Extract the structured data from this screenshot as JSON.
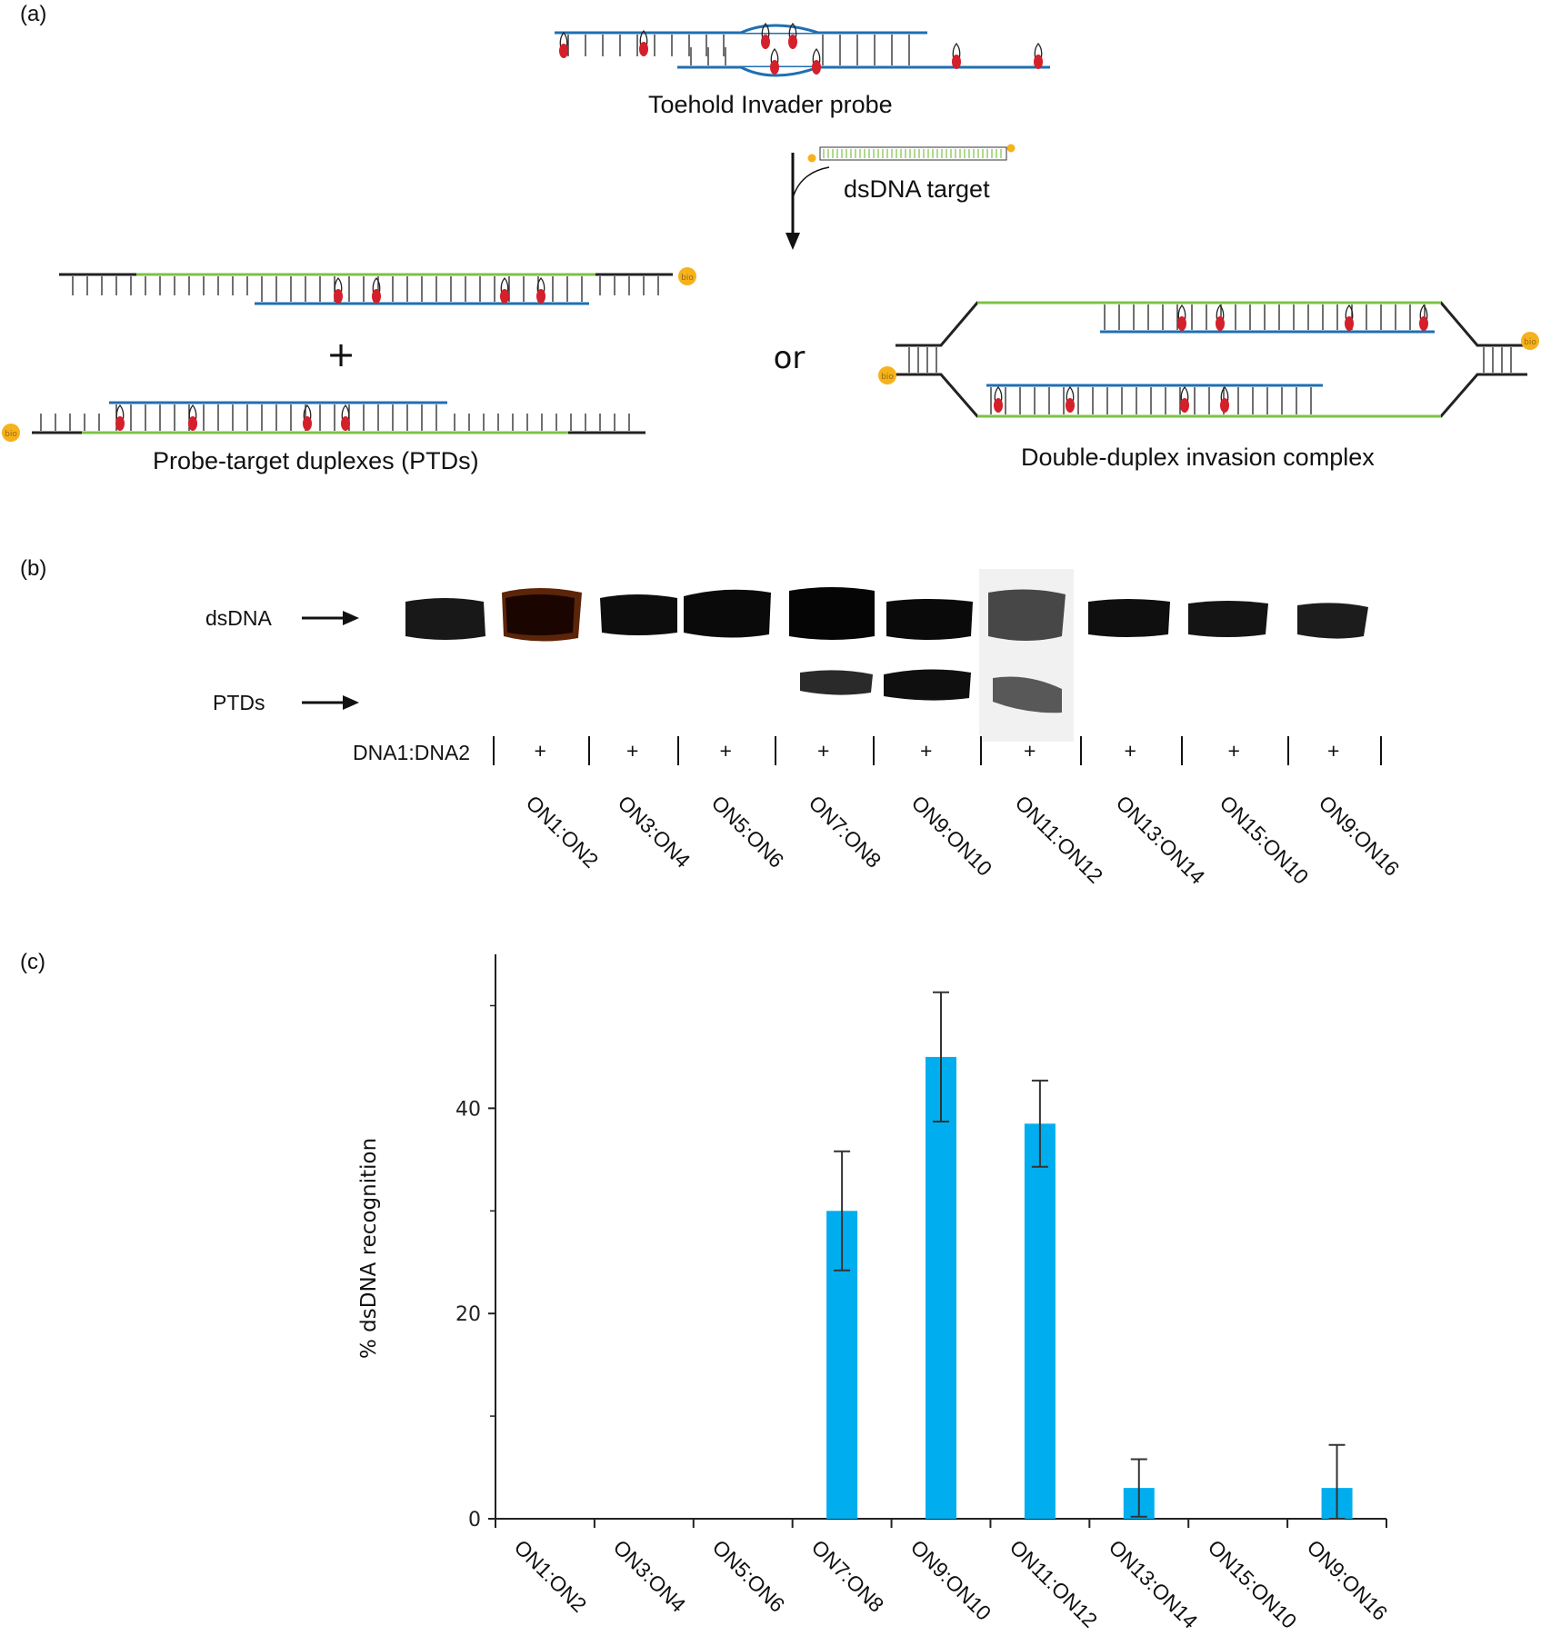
{
  "panels": {
    "a": "(a)",
    "b": "(b)",
    "c": "(c)"
  },
  "schematic": {
    "probe_label": "Toehold Invader probe",
    "target_label": "dsDNA target",
    "ptd_label": "Probe-target duplexes (PTDs)",
    "complex_label": "Double-duplex invasion complex",
    "plus": "+",
    "or": "or",
    "bio": "bio",
    "colors": {
      "probe": "#1f6fb2",
      "target": "#7cc243",
      "monomer": "#d4202a",
      "biotin": "#f6b21b"
    }
  },
  "gel": {
    "band_labels": {
      "dsdna": "dsDNA",
      "ptds": "PTDs"
    },
    "row_label": "DNA1:DNA2",
    "lanes": [
      {
        "id": "ON1:ON2",
        "sign": "+"
      },
      {
        "id": "ON3:ON4",
        "sign": "+"
      },
      {
        "id": "ON5:ON6",
        "sign": "+"
      },
      {
        "id": "ON7:ON8",
        "sign": "+"
      },
      {
        "id": "ON9:ON10",
        "sign": "+"
      },
      {
        "id": "ON11:ON12",
        "sign": "+"
      },
      {
        "id": "ON13:ON14",
        "sign": "+"
      },
      {
        "id": "ON15:ON10",
        "sign": "+"
      },
      {
        "id": "ON9:ON16",
        "sign": "+"
      }
    ]
  },
  "chart_data": {
    "type": "bar",
    "categories": [
      "ON1:ON2",
      "ON3:ON4",
      "ON5:ON6",
      "ON7:ON8",
      "ON9:ON10",
      "ON11:ON12",
      "ON13:ON14",
      "ON15:ON10",
      "ON9:ON16"
    ],
    "values": [
      0,
      0,
      0,
      30,
      45,
      38.5,
      3,
      0,
      3
    ],
    "errors": [
      0,
      0,
      0,
      5.8,
      6.3,
      4.2,
      2.8,
      0,
      4.2
    ],
    "ylabel": "% dsDNA recognition",
    "yticks": [
      0,
      20,
      40
    ],
    "ylim": [
      0,
      55
    ],
    "color": "#00aeef",
    "grid": false
  }
}
